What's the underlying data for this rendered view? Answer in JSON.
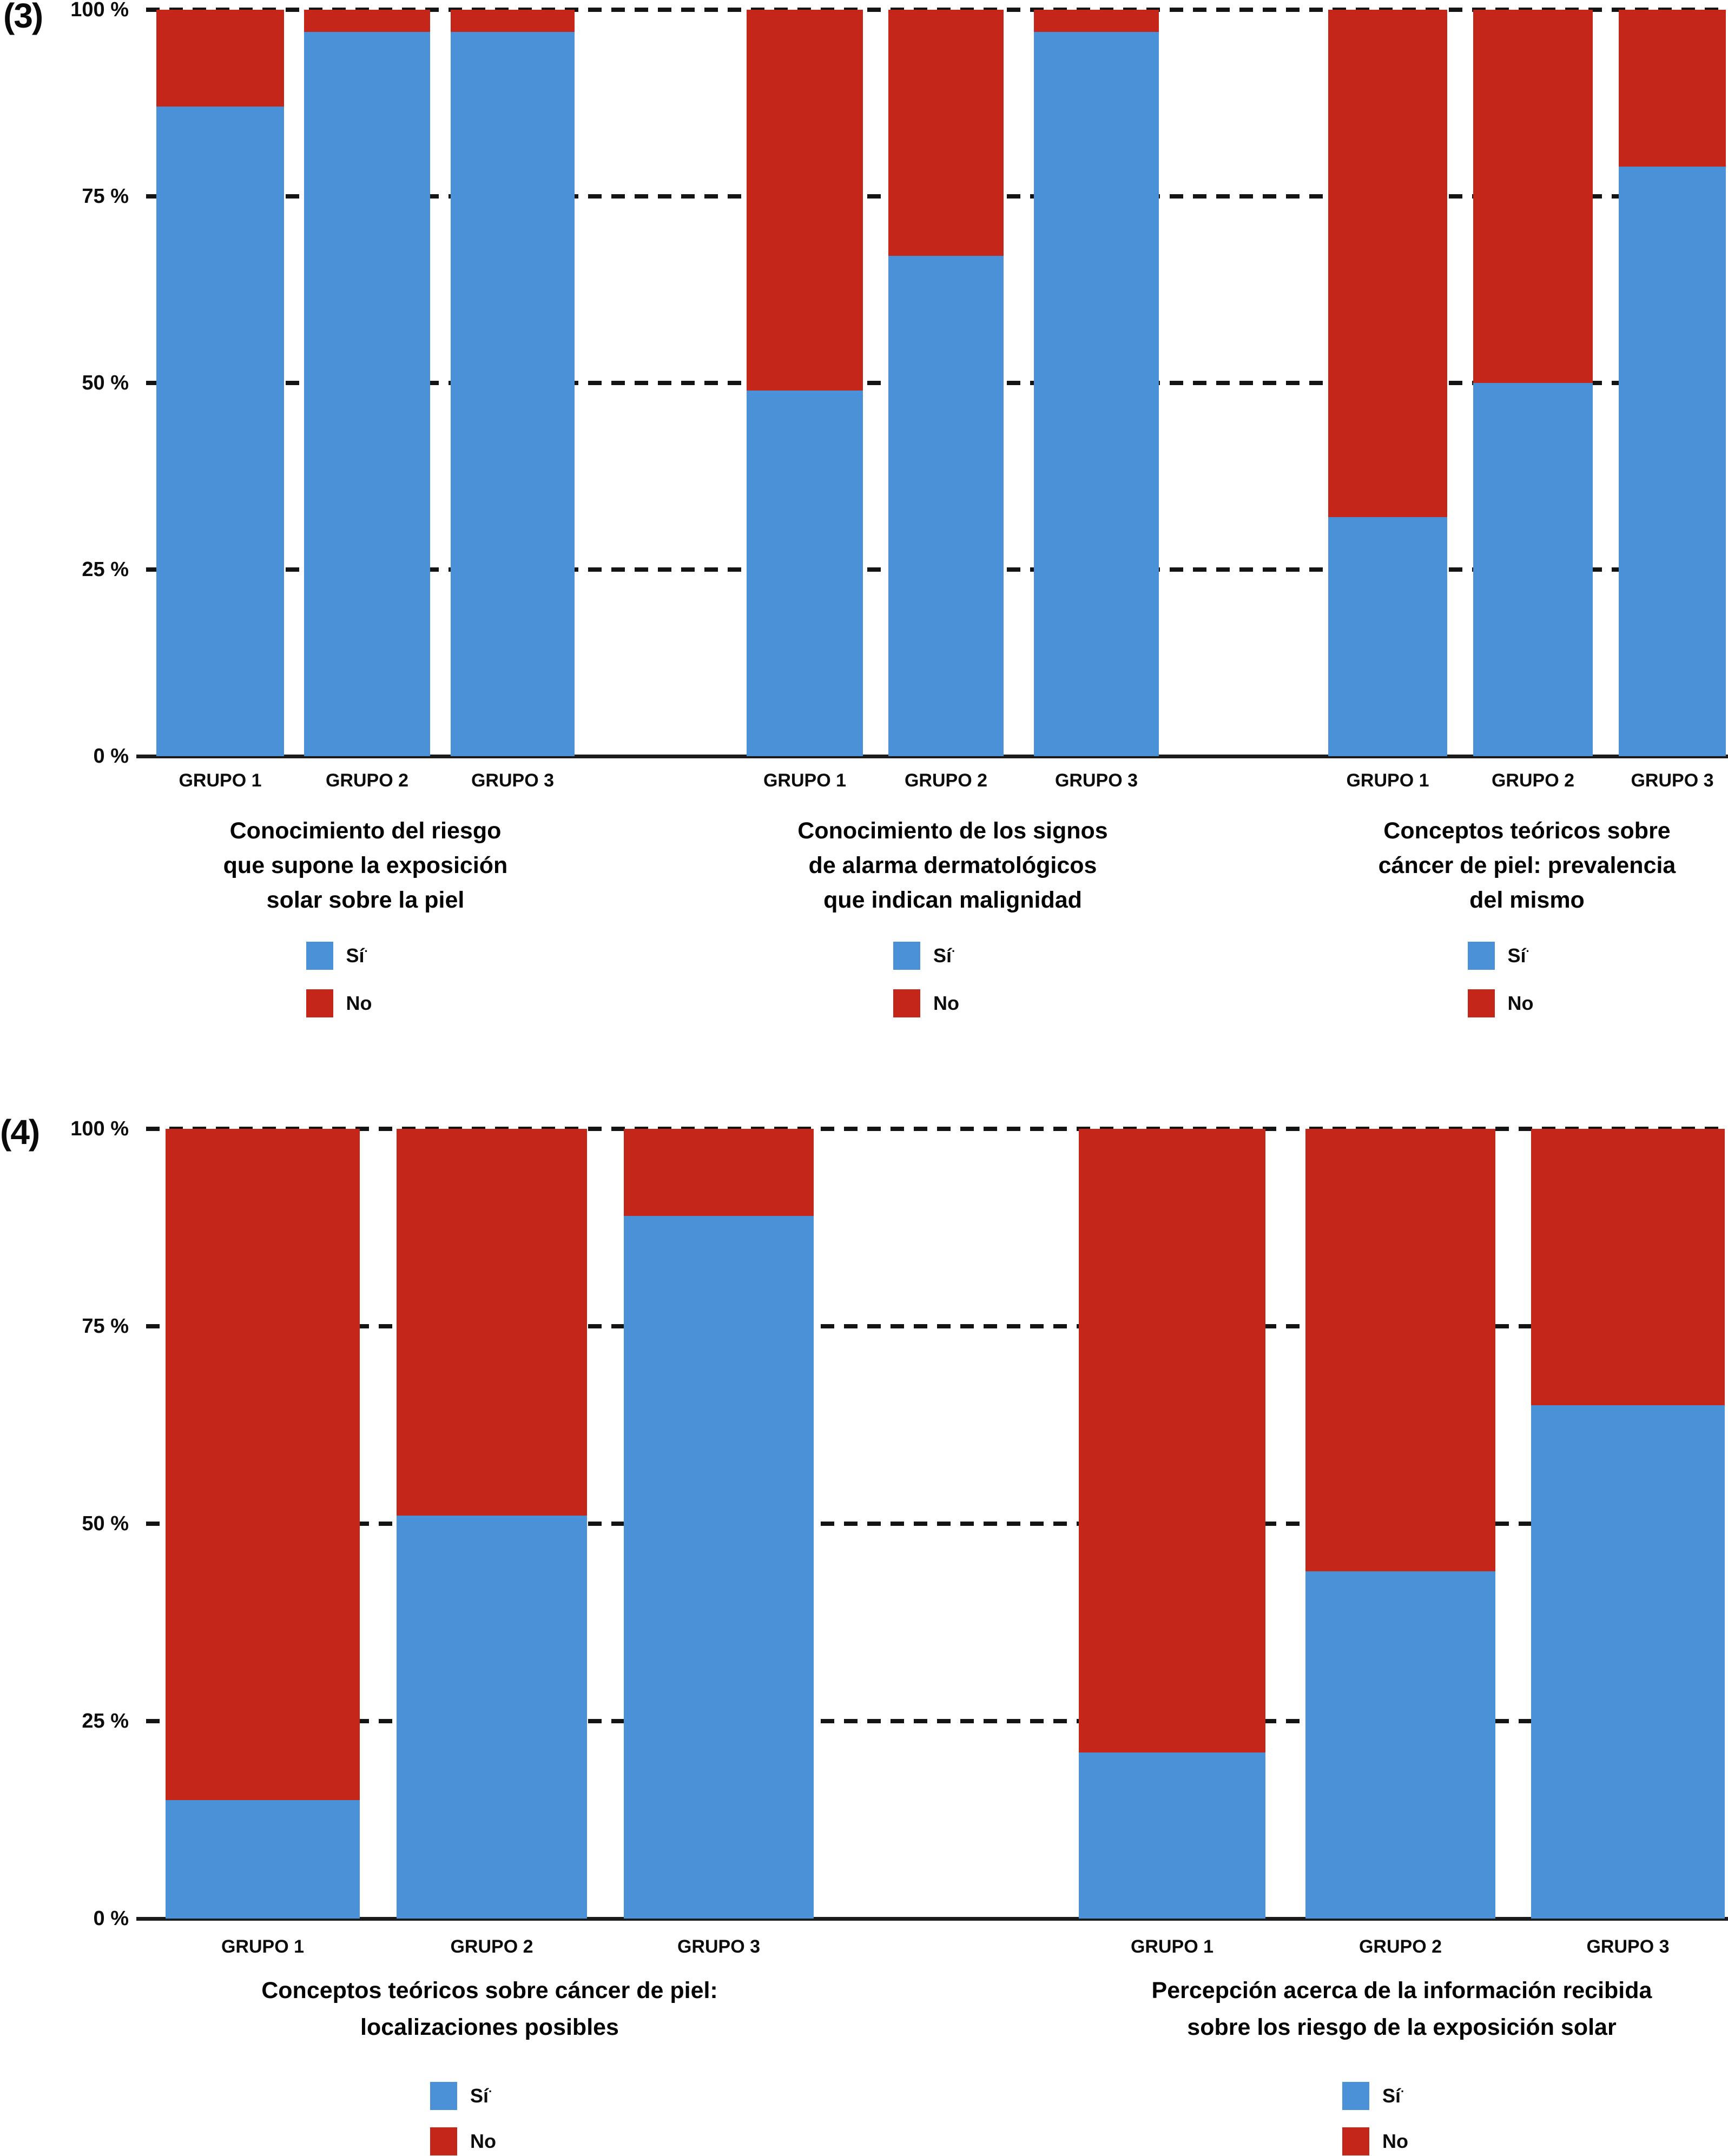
{
  "figure": {
    "background": "#ffffff",
    "si_color": "#4b91d8",
    "no_color": "#c4271a",
    "axis_color": "#1b1b1b",
    "text_color": "#111111",
    "legend": {
      "si_label": "Sí",
      "si_mark": "·",
      "no_label": "No"
    }
  },
  "chart_data": [
    {
      "type": "bar",
      "stacked": true,
      "panel_label": "(3)",
      "ylim": [
        0,
        100
      ],
      "y_ticks": [
        "100 %",
        "75 %",
        "50 %",
        "25 %",
        "0 %"
      ],
      "grid": "dashed horizontal lines at 25/50/75/100, solid baseline at 0",
      "legend_position": "below each cluster caption",
      "clusters": [
        {
          "caption_lines": [
            "Conocimiento del riesgo",
            "que supone la exposición",
            "solar sobre la piel"
          ],
          "groups": [
            "GRUPO 1",
            "GRUPO 2",
            "GRUPO 3"
          ],
          "series": [
            {
              "name": "Sí",
              "values": [
                87,
                97,
                97
              ]
            },
            {
              "name": "No",
              "values": [
                13,
                3,
                3
              ]
            }
          ]
        },
        {
          "caption_lines": [
            "Conocimiento de los signos",
            "de alarma dermatológicos",
            "que indican malignidad"
          ],
          "groups": [
            "GRUPO 1",
            "GRUPO 2",
            "GRUPO 3"
          ],
          "series": [
            {
              "name": "Sí",
              "values": [
                49,
                67,
                97
              ]
            },
            {
              "name": "No",
              "values": [
                51,
                33,
                3
              ]
            }
          ]
        },
        {
          "caption_lines": [
            "Conceptos teóricos sobre",
            "cáncer de piel: prevalencia",
            "del mismo"
          ],
          "groups": [
            "GRUPO 1",
            "GRUPO 2",
            "GRUPO 3"
          ],
          "series": [
            {
              "name": "Sí",
              "values": [
                32,
                50,
                79
              ]
            },
            {
              "name": "No",
              "values": [
                68,
                50,
                21
              ]
            }
          ]
        }
      ]
    },
    {
      "type": "bar",
      "stacked": true,
      "panel_label": "(4)",
      "ylim": [
        0,
        100
      ],
      "y_ticks": [
        "100 %",
        "75 %",
        "50 %",
        "25 %",
        "0 %"
      ],
      "grid": "dashed horizontal lines at 25/50/75/100, solid baseline at 0",
      "legend_position": "below each cluster caption",
      "clusters": [
        {
          "caption_lines": [
            "Conceptos teóricos sobre cáncer de piel:",
            "localizaciones posibles"
          ],
          "groups": [
            "GRUPO 1",
            "GRUPO 2",
            "GRUPO 3"
          ],
          "series": [
            {
              "name": "Sí",
              "values": [
                15,
                51,
                89
              ]
            },
            {
              "name": "No",
              "values": [
                85,
                49,
                11
              ]
            }
          ]
        },
        {
          "caption_lines": [
            "Percepción acerca de la información recibida",
            "sobre los riesgo de la exposición solar"
          ],
          "groups": [
            "GRUPO 1",
            "GRUPO 2",
            "GRUPO 3"
          ],
          "series": [
            {
              "name": "Sí",
              "values": [
                21,
                44,
                65
              ]
            },
            {
              "name": "No",
              "values": [
                79,
                56,
                35
              ]
            }
          ]
        }
      ]
    }
  ]
}
